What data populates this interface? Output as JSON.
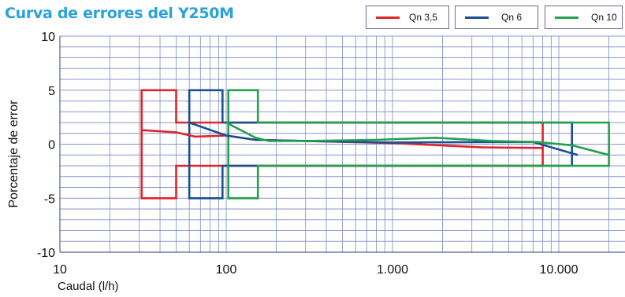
{
  "title": "Curva de errores del Y250M",
  "chart_data": {
    "type": "line",
    "title": "Curva de errores del Y250M",
    "xlabel": "Caudal (l/h)",
    "ylabel": "Porcentaje de error",
    "xscale": "log",
    "xlim": [
      10,
      25000
    ],
    "ylim": [
      -10,
      10
    ],
    "xticks": [
      10,
      100,
      1000,
      10000
    ],
    "xtick_labels": [
      "10",
      "100",
      "1.000",
      "10.000"
    ],
    "yticks": [
      10,
      5,
      0,
      -5,
      -10
    ],
    "ytick_labels": [
      "10",
      "5",
      "0",
      "-5",
      "-10"
    ],
    "grid": true,
    "legend_position": "top-right",
    "series": [
      {
        "name": "Qn 3,5",
        "color": "#e0242b",
        "x": [
          31,
          50,
          65,
          100,
          150,
          300,
          1000,
          3500,
          8000
        ],
        "y": [
          1.3,
          1.1,
          0.7,
          0.8,
          0.4,
          0.3,
          0.1,
          -0.3,
          -0.35
        ],
        "limit_envelope": {
          "x": [
            31,
            31,
            50,
            50,
            8000,
            8000,
            50,
            50,
            31,
            31
          ],
          "y": [
            0,
            5,
            5,
            2,
            2,
            -2,
            -2,
            -5,
            -5,
            0
          ]
        }
      },
      {
        "name": "Qn 6",
        "color": "#1a4f94",
        "x": [
          60,
          100,
          150,
          300,
          1000,
          3500,
          7000,
          13000
        ],
        "y": [
          2.0,
          0.8,
          0.4,
          0.3,
          0.15,
          0.2,
          0.2,
          -1.0
        ],
        "limit_envelope": {
          "x": [
            60,
            60,
            95,
            95,
            12000,
            12000,
            95,
            95,
            60,
            60
          ],
          "y": [
            0,
            5,
            5,
            2,
            2,
            -2,
            -2,
            -5,
            -5,
            0
          ]
        }
      },
      {
        "name": "Qn 10",
        "color": "#22a24a",
        "x": [
          100,
          150,
          180,
          300,
          800,
          1800,
          4000,
          7500,
          12000,
          20000
        ],
        "y": [
          2.0,
          0.6,
          0.3,
          0.3,
          0.4,
          0.6,
          0.3,
          0.2,
          -0.1,
          -1.0
        ],
        "limit_envelope": {
          "x": [
            103,
            103,
            155,
            155,
            20000,
            20000,
            155,
            155,
            103,
            103
          ],
          "y": [
            0,
            5,
            5,
            2,
            2,
            -2,
            -2,
            -5,
            -5,
            0
          ]
        }
      }
    ]
  }
}
